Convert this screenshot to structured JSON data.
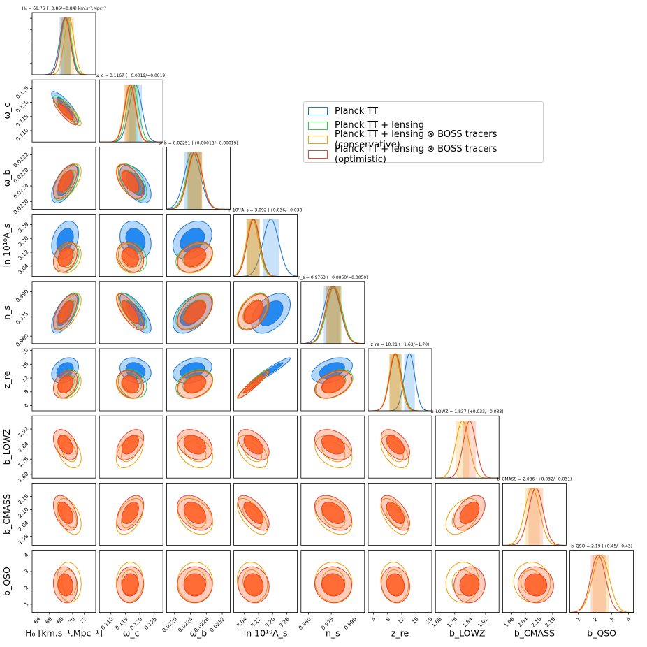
{
  "colors": {
    "planck_tt": "#1f77d4",
    "planck_tt_fill": "#0a7cf0",
    "lensing": "#2ecc40",
    "conservative": "#f0a000",
    "optimistic": "#e8452c",
    "optimistic_fill": "#ff5a1e"
  },
  "legend": [
    {
      "label": "Planck TT",
      "color": "#1f77d4"
    },
    {
      "label": "Planck TT + lensing",
      "color": "#2ecc40"
    },
    {
      "label": "Planck TT + lensing ⊗ BOSS tracers (conservative)",
      "color": "#f0a000"
    },
    {
      "label": "Planck TT + lensing ⊗ BOSS tracers (optimistic)",
      "color": "#e8452c"
    }
  ],
  "chart_data": {
    "type": "corner",
    "parameters": [
      {
        "key": "H0",
        "label": "H₀ [km.s⁻¹.Mpc⁻¹]",
        "range": [
          63,
          74
        ],
        "ticks": [
          "64",
          "66",
          "68",
          "70",
          "72"
        ],
        "tick_values": [
          64,
          66,
          68,
          70,
          72
        ],
        "title": "H₀ = 68.76 (+0.86/−0.84) km.s⁻¹.Mpc⁻¹",
        "means": [
          68.7,
          68.9,
          69.4,
          68.76
        ],
        "sigmas": [
          0.95,
          0.9,
          0.85,
          0.85
        ]
      },
      {
        "key": "omega_c",
        "label": "ω_c",
        "range": [
          0.106,
          0.128
        ],
        "ticks": [
          "0.110",
          "0.115",
          "0.120",
          "0.125"
        ],
        "tick_values": [
          0.11,
          0.115,
          0.12,
          0.125
        ],
        "title": "ω_c = 0.1167 (+0.0019/−0.0019)",
        "means": [
          0.1185,
          0.1175,
          0.1165,
          0.1167
        ],
        "sigmas": [
          0.0022,
          0.002,
          0.0019,
          0.0019
        ]
      },
      {
        "key": "omega_b",
        "label": "ω_b",
        "range": [
          0.0218,
          0.0234
        ],
        "ticks": [
          "0.0220",
          "0.0224",
          "0.0228",
          "0.0232"
        ],
        "tick_values": [
          0.022,
          0.0224,
          0.0228,
          0.0232
        ],
        "title": "ω_b = 0.02251 (+0.00018/−0.00019)",
        "means": [
          0.02245,
          0.0225,
          0.02252,
          0.02251
        ],
        "sigmas": [
          0.0002,
          0.00019,
          0.00018,
          0.00018
        ]
      },
      {
        "key": "lnAs",
        "label": "ln 10¹⁰A_s",
        "range": [
          2.98,
          3.34
        ],
        "ticks": [
          "3.04",
          "3.12",
          "3.20",
          "3.28"
        ],
        "tick_values": [
          3.04,
          3.12,
          3.2,
          3.28
        ],
        "title": "ln 10¹⁰A_s = 3.092 (+0.036/−0.038)",
        "means": [
          3.19,
          3.09,
          3.085,
          3.092
        ],
        "sigmas": [
          0.045,
          0.035,
          0.035,
          0.036
        ]
      },
      {
        "key": "ns",
        "label": "n_s",
        "range": [
          0.955,
          0.997
        ],
        "ticks": [
          "0.960",
          "0.975",
          "0.990"
        ],
        "tick_values": [
          0.96,
          0.975,
          0.99
        ],
        "title": "n_s = 0.9763 (+0.0050/−0.0050)",
        "means": [
          0.9755,
          0.977,
          0.9765,
          0.9763
        ],
        "sigmas": [
          0.0055,
          0.005,
          0.005,
          0.005
        ]
      },
      {
        "key": "zre",
        "label": "z_re",
        "range": [
          2.5,
          20.5
        ],
        "ticks": [
          "4",
          "8",
          "12",
          "16",
          "20"
        ],
        "tick_values": [
          4,
          8,
          12,
          16,
          20
        ],
        "title": "z_re = 10.21 (+1.63/−1.70)",
        "means": [
          14.2,
          10.3,
          10.0,
          10.21
        ],
        "sigmas": [
          1.5,
          1.7,
          1.6,
          1.65
        ]
      },
      {
        "key": "bLOWZ",
        "label": "b_LOWZ",
        "range": [
          1.66,
          1.99
        ],
        "ticks": [
          "1.68",
          "1.76",
          "1.84",
          "1.92"
        ],
        "tick_values": [
          1.68,
          1.76,
          1.84,
          1.92
        ],
        "title": "b_LOWZ = 1.837 (+0.033/−0.033)",
        "means": [
          null,
          null,
          1.8,
          1.837
        ],
        "sigmas": [
          null,
          null,
          0.035,
          0.033
        ]
      },
      {
        "key": "bCMASS",
        "label": "b_CMASS",
        "range": [
          1.94,
          2.22
        ],
        "ticks": [
          "1.98",
          "2.04",
          "2.10",
          "2.16"
        ],
        "tick_values": [
          1.98,
          2.04,
          2.1,
          2.16
        ],
        "title": "b_CMASS = 2.086 (+0.032/−0.031)",
        "means": [
          null,
          null,
          2.07,
          2.086
        ],
        "sigmas": [
          null,
          null,
          0.033,
          0.032
        ]
      },
      {
        "key": "bQSO",
        "label": "b_QSO",
        "range": [
          0.5,
          4.3
        ],
        "ticks": [
          "1",
          "2",
          "3",
          "4"
        ],
        "tick_values": [
          1,
          2,
          3,
          4
        ],
        "title": "b_QSO = 2.19 (+0.45/−0.43)",
        "means": [
          null,
          null,
          2.35,
          2.19
        ],
        "sigmas": [
          null,
          null,
          0.5,
          0.45
        ]
      }
    ],
    "series_names": [
      "Planck TT",
      "Planck TT + lensing",
      "Planck TT + lensing ⊗ BOSS tracers (conservative)",
      "Planck TT + lensing ⊗ BOSS tracers (optimistic)"
    ],
    "correlation": [
      [
        1.0,
        -0.85,
        0.6,
        0.3,
        0.65,
        0.3,
        -0.4,
        -0.45,
        -0.1
      ],
      [
        -0.85,
        1.0,
        -0.55,
        -0.2,
        -0.75,
        -0.2,
        0.45,
        0.45,
        0.05
      ],
      [
        0.6,
        -0.55,
        1.0,
        0.3,
        0.5,
        0.3,
        -0.3,
        -0.35,
        0.0
      ],
      [
        0.3,
        -0.2,
        0.3,
        1.0,
        0.45,
        0.95,
        -0.5,
        -0.65,
        -0.1
      ],
      [
        0.65,
        -0.75,
        0.5,
        0.45,
        1.0,
        0.4,
        -0.35,
        -0.4,
        -0.05
      ],
      [
        0.3,
        -0.2,
        0.3,
        0.95,
        0.4,
        1.0,
        -0.5,
        -0.6,
        -0.1
      ],
      [
        -0.4,
        0.45,
        -0.3,
        -0.5,
        -0.35,
        -0.5,
        1.0,
        0.45,
        0.05
      ],
      [
        -0.45,
        0.45,
        -0.35,
        -0.65,
        -0.4,
        -0.6,
        0.45,
        1.0,
        -0.05
      ],
      [
        -0.1,
        0.05,
        0.0,
        -0.1,
        -0.05,
        -0.1,
        0.05,
        -0.05,
        1.0
      ]
    ]
  }
}
